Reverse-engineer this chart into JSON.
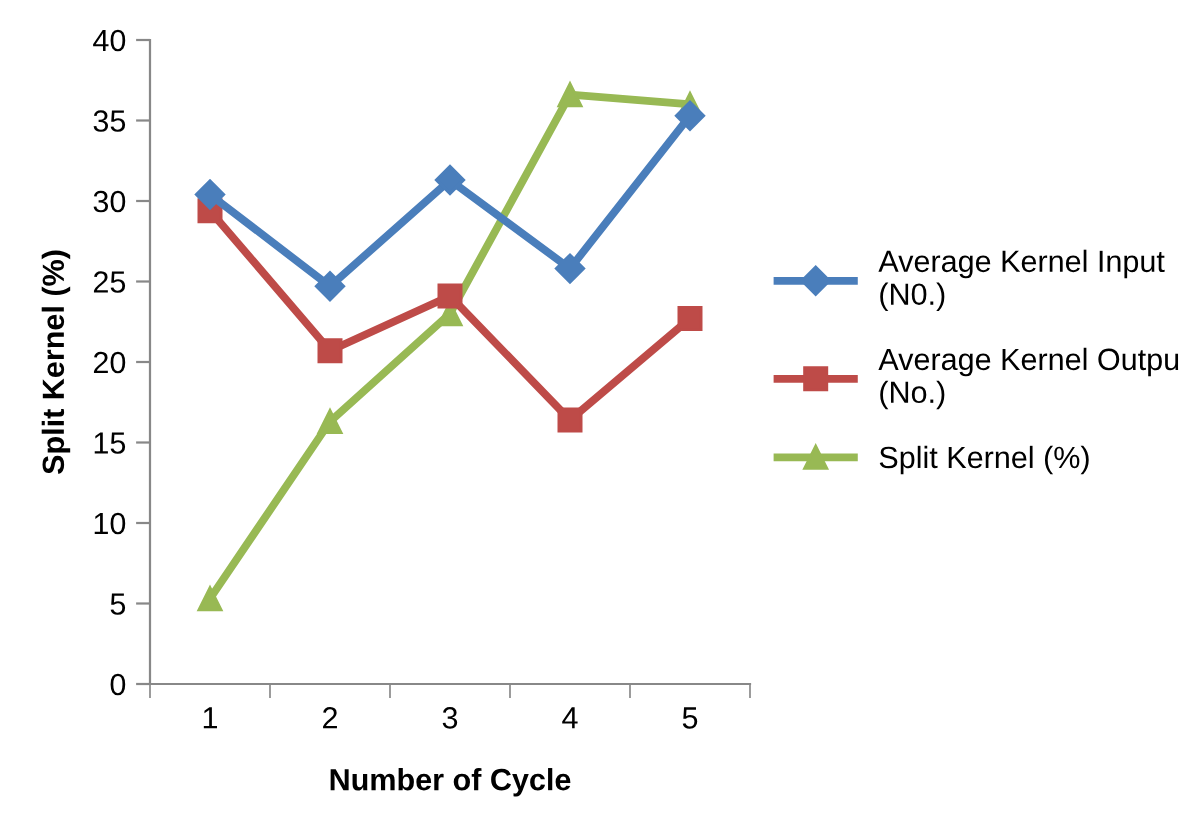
{
  "chart_data": {
    "type": "line",
    "xlabel": "Number of Cycle",
    "ylabel": "Split Kernel (%)",
    "categories": [
      "1",
      "2",
      "3",
      "4",
      "5"
    ],
    "series": [
      {
        "name": "Average Kernel Input\n(N0.)",
        "color": "#4a7ebb",
        "marker": "diamond",
        "values": [
          30.4,
          24.7,
          31.3,
          25.8,
          35.3
        ]
      },
      {
        "name": "Average Kernel Outpu\n(No.)",
        "color": "#be4b48",
        "marker": "square",
        "values": [
          29.4,
          20.7,
          24.1,
          16.4,
          22.7
        ]
      },
      {
        "name": "Split Kernel (%)",
        "color": "#98b954",
        "marker": "triangle",
        "values": [
          5.3,
          16.3,
          23.0,
          36.6,
          36.0
        ]
      }
    ],
    "ylim": [
      0,
      40
    ],
    "yticks": [
      0,
      5,
      10,
      15,
      20,
      25,
      30,
      35,
      40
    ],
    "grid": false,
    "legend": "right"
  }
}
